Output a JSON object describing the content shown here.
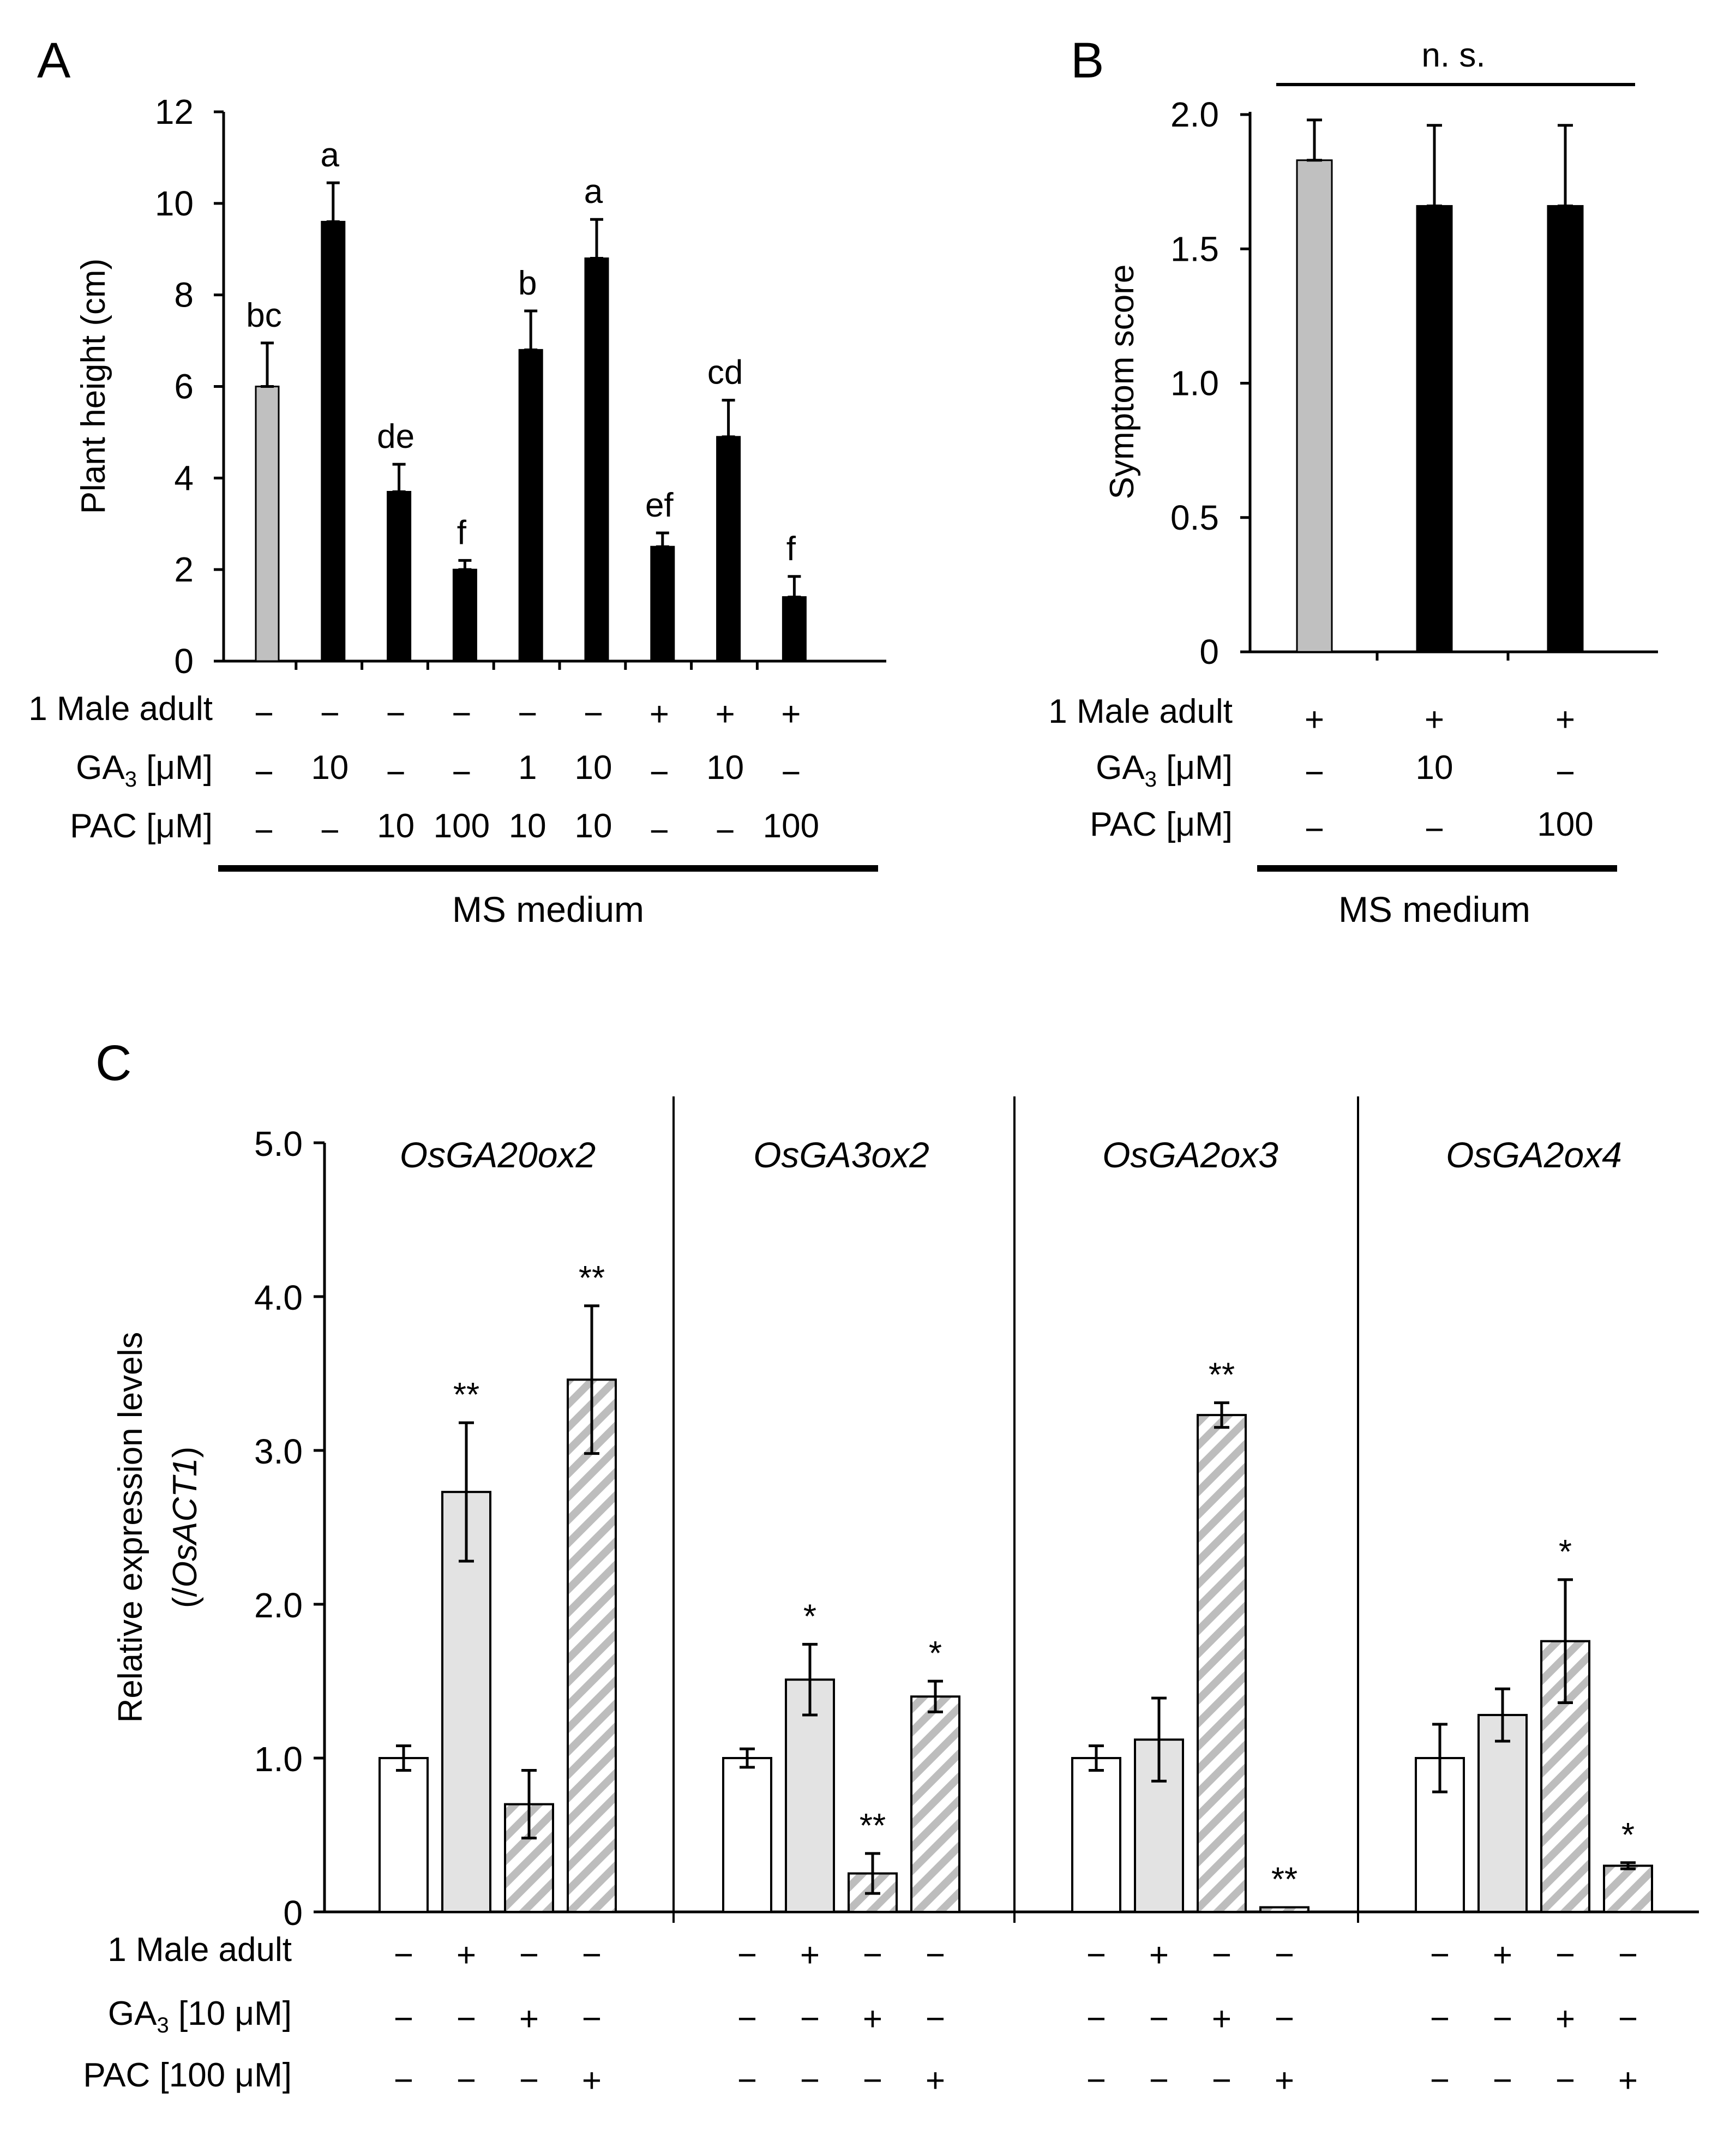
{
  "colors": {
    "grey": "#c0c0c0",
    "black": "#000000",
    "white": "#ffffff",
    "light_grey": "#e3e3e3",
    "hatch": "#bdbdbd"
  },
  "panels": {
    "A": {
      "letter": "A",
      "medium_label": "MS medium",
      "chart_data": {
        "type": "bar",
        "ylabel": "Plant height (cm)",
        "ylim": [
          0,
          12
        ],
        "yticks": [
          "0",
          "2",
          "4",
          "6",
          "8",
          "10",
          "12"
        ],
        "values": [
          6.0,
          9.6,
          3.7,
          2.0,
          6.8,
          8.8,
          2.5,
          4.9,
          1.4
        ],
        "errors": [
          0.95,
          0.85,
          0.6,
          0.2,
          0.85,
          0.85,
          0.3,
          0.8,
          0.45
        ],
        "fills": [
          "grey",
          "black",
          "black",
          "black",
          "black",
          "black",
          "black",
          "black",
          "black"
        ],
        "sig_letters": [
          "bc",
          "a",
          "de",
          "f",
          "b",
          "a",
          "ef",
          "cd",
          "f"
        ]
      },
      "rows": [
        {
          "label": "1 Male adult",
          "values": [
            "−",
            "−",
            "−",
            "−",
            "−",
            "−",
            "+",
            "+",
            "+"
          ]
        },
        {
          "label_main": "GA",
          "label_sub": "3",
          "label_rest": " [μM]",
          "values": [
            "−",
            "10",
            "−",
            "−",
            "1",
            "10",
            "−",
            "10",
            "−"
          ]
        },
        {
          "label": "PAC  [μM]",
          "values": [
            "−",
            "−",
            "10",
            "100",
            "10",
            "10",
            "−",
            "−",
            "100"
          ]
        }
      ]
    },
    "B": {
      "letter": "B",
      "medium_label": "MS medium",
      "ns_label": "n. s.",
      "chart_data": {
        "type": "bar",
        "ylabel": "Symptom score",
        "ylim": [
          0,
          2.0
        ],
        "yticks": [
          "0",
          "0.5",
          "1.0",
          "1.5",
          "2.0"
        ],
        "values": [
          1.83,
          1.66,
          1.66
        ],
        "errors": [
          0.15,
          0.3,
          0.3
        ],
        "fills": [
          "grey",
          "black",
          "black"
        ]
      },
      "rows": [
        {
          "label": "1 Male adult",
          "values": [
            "+",
            "+",
            "+"
          ]
        },
        {
          "label_main": "GA",
          "label_sub": "3",
          "label_rest": " [μM]",
          "values": [
            "−",
            "10",
            "−"
          ]
        },
        {
          "label": "PAC  [μM]",
          "values": [
            "−",
            "−",
            "100"
          ]
        }
      ]
    },
    "C": {
      "letter": "C",
      "chart_data": {
        "type": "bar",
        "ylabel_line1": "Relative expression levels",
        "ylabel_line2_open": "(/",
        "ylabel_line2_italic": "OsACT1",
        "ylabel_line2_close": ")",
        "ylim": [
          0,
          5.0
        ],
        "yticks": [
          "0",
          "1.0",
          "2.0",
          "3.0",
          "4.0",
          "5.0"
        ],
        "fills": [
          "white",
          "light_grey",
          "hatch",
          "hatch"
        ],
        "groups": [
          {
            "gene": "OsGA20ox2",
            "values": [
              1.0,
              2.73,
              0.7,
              3.46
            ],
            "errors": [
              0.08,
              0.45,
              0.22,
              0.48
            ],
            "sig": [
              "",
              "**",
              "",
              "**"
            ]
          },
          {
            "gene": "OsGA3ox2",
            "values": [
              1.0,
              1.51,
              0.25,
              1.4
            ],
            "errors": [
              0.06,
              0.23,
              0.13,
              0.1
            ],
            "sig": [
              "",
              "*",
              "**",
              "*"
            ]
          },
          {
            "gene": "OsGA2ox3",
            "values": [
              1.0,
              1.12,
              3.23,
              0.03
            ],
            "errors": [
              0.08,
              0.27,
              0.08,
              0.0
            ],
            "sig": [
              "",
              "",
              "**",
              "**"
            ]
          },
          {
            "gene": "OsGA2ox4",
            "values": [
              1.0,
              1.28,
              1.76,
              0.3
            ],
            "errors": [
              0.22,
              0.17,
              0.4,
              0.02
            ],
            "sig": [
              "",
              "",
              "*",
              "*"
            ]
          }
        ]
      },
      "rows": [
        {
          "label": "1 Male adult",
          "values": [
            "−",
            "+",
            "−",
            "−"
          ]
        },
        {
          "label_main": "GA",
          "label_sub": "3",
          "label_rest": " [10 μM]",
          "values": [
            "−",
            "−",
            "+",
            "−"
          ]
        },
        {
          "label": "PAC  [100 μM]",
          "values": [
            "−",
            "−",
            "−",
            "+"
          ]
        }
      ]
    }
  }
}
